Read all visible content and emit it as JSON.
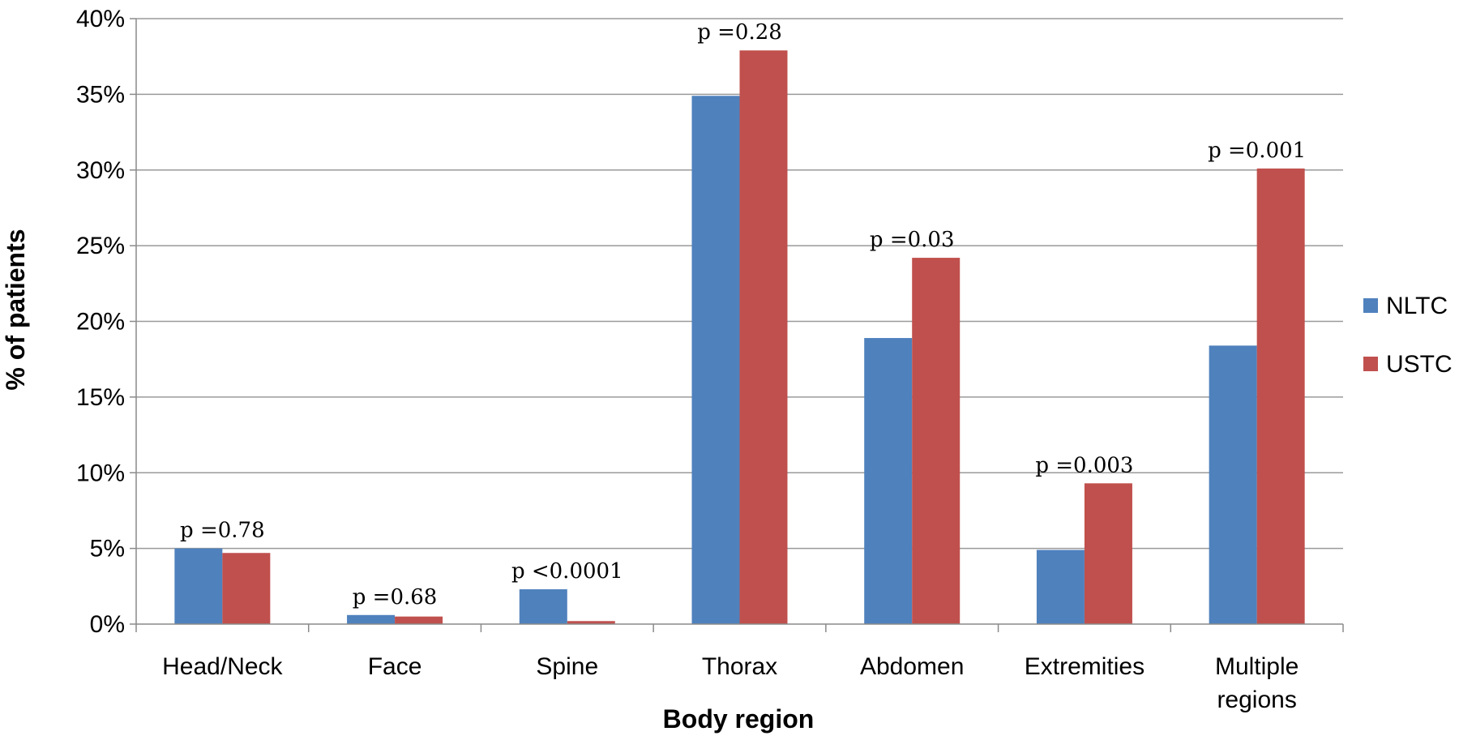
{
  "chart_data": {
    "type": "bar",
    "xlabel": "Body region",
    "ylabel": "% of patients",
    "ylim": [
      0,
      40
    ],
    "yticks": [
      0,
      5,
      10,
      15,
      20,
      25,
      30,
      35,
      40
    ],
    "ytick_suffix": "%",
    "grid": true,
    "legend_position": "right",
    "categories": [
      [
        "Head/Neck"
      ],
      [
        "Face"
      ],
      [
        "Spine"
      ],
      [
        "Thorax"
      ],
      [
        "Abdomen"
      ],
      [
        "Extremities"
      ],
      [
        "Multiple",
        "regions"
      ]
    ],
    "series": [
      {
        "name": "NLTC",
        "color": "#4F81BD",
        "values": [
          5.0,
          0.6,
          2.3,
          34.9,
          18.9,
          4.9,
          18.4
        ]
      },
      {
        "name": "USTC",
        "color": "#C0504D",
        "values": [
          4.7,
          0.5,
          0.2,
          37.9,
          24.2,
          9.3,
          30.1
        ]
      }
    ],
    "annotations": [
      "p =0.78",
      "p =0.68",
      "p <0.0001",
      "p =0.28",
      "p =0.03",
      "p =0.003",
      "p =0.001"
    ]
  }
}
